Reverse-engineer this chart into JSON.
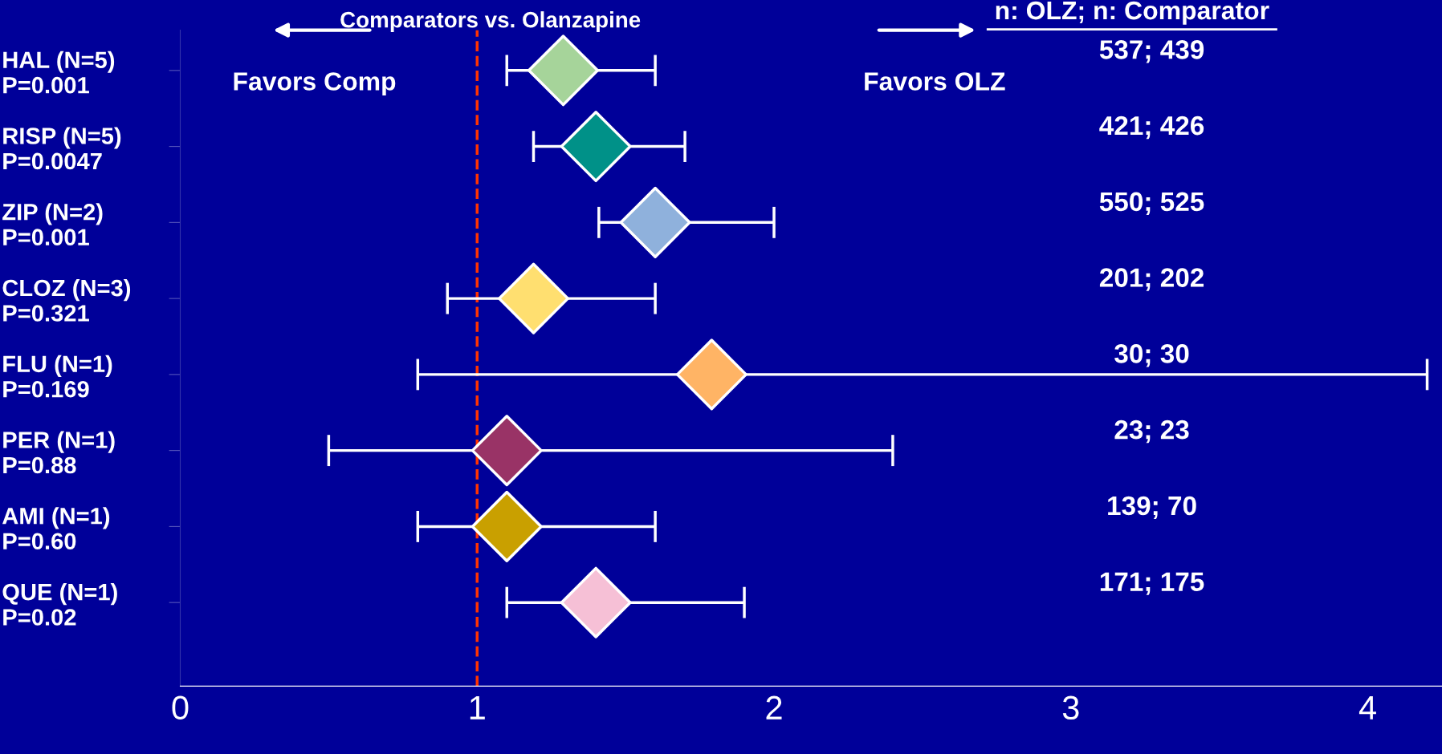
{
  "chart_data": {
    "type": "scatter",
    "orientation": "horizontal",
    "title": "Comparators vs. Olanzapine",
    "categories": [
      "HAL (N=5)\nP=0.001",
      "RISP (N=5)\nP=0.0047",
      "ZIP (N=2)\nP=0.001",
      "CLOZ (N=3)\nP=0.321",
      "FLU (N=1)\nP=0.169",
      "PER (N=1)\nP=0.88",
      "AMI (N=1)\nP=0.60",
      "QUE (N=1)\nP=0.02"
    ],
    "y2_categories": [
      "537; 439",
      "421; 426",
      "550; 525",
      "201; 202",
      "30; 30",
      "23; 23",
      "139; 70",
      "171; 175"
    ],
    "values": [
      1.29,
      1.4,
      1.6,
      1.19,
      1.79,
      1.1,
      1.1,
      1.4
    ],
    "errors": [
      [
        1.1,
        1.6
      ],
      [
        1.19,
        1.7
      ],
      [
        1.41,
        2.0
      ],
      [
        0.9,
        1.6
      ],
      [
        0.8,
        4.2
      ],
      [
        0.5,
        2.4
      ],
      [
        0.8,
        1.6
      ],
      [
        1.1,
        1.9
      ]
    ],
    "colors": [
      "#a6d49a",
      "#009188",
      "#8fb1dc",
      "#ffdf70",
      "#ffb465",
      "#993366",
      "#c9a000",
      "#f6c0d6"
    ],
    "marker": "diamond",
    "xlim": [
      0,
      4.25
    ],
    "xticks": [
      0,
      1,
      2,
      3,
      4
    ],
    "ref_lines": [
      {
        "axis": "x",
        "value": 1,
        "color": "#ff3300",
        "line_style": "dashed"
      }
    ],
    "annotations": [
      "Favors Comp",
      "Favors OLZ",
      "n: OLZ; n: Comparator"
    ],
    "grid": false,
    "legend": false
  }
}
